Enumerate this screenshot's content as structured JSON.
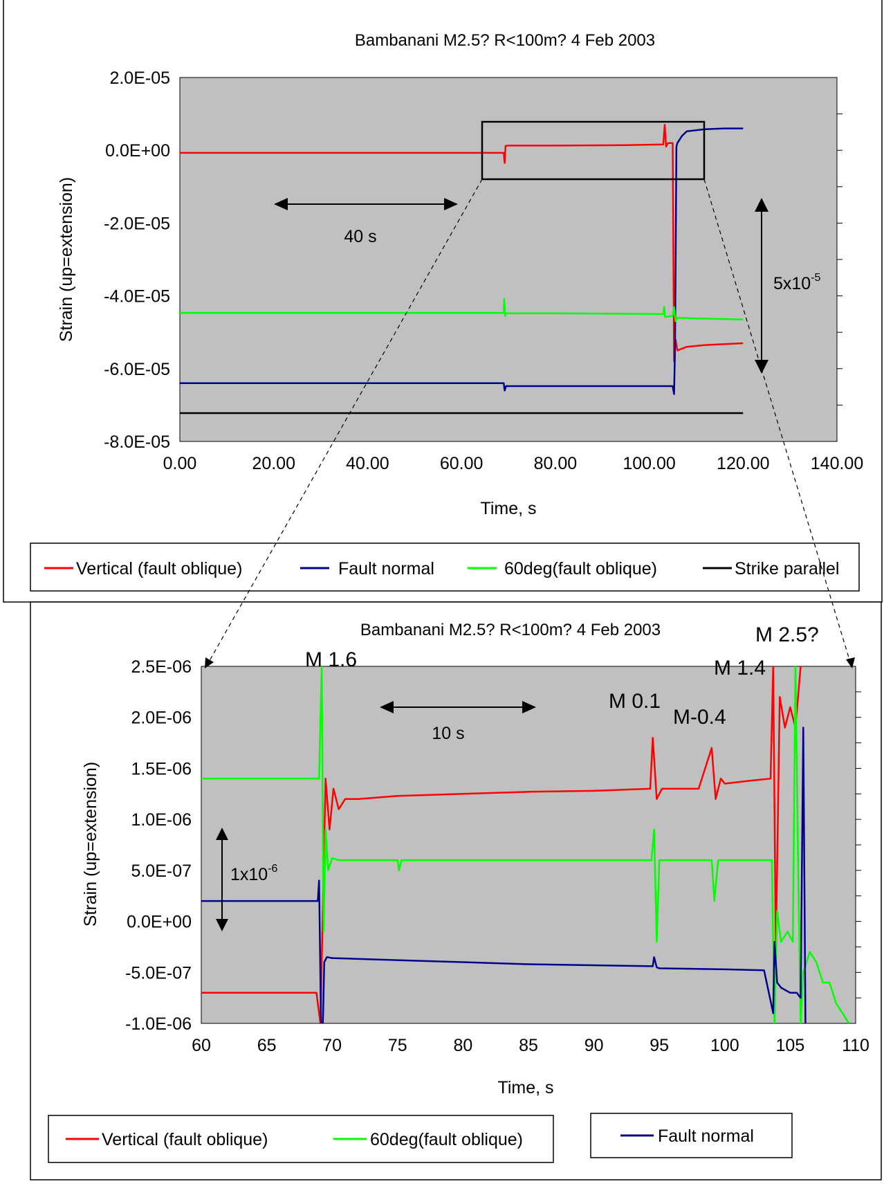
{
  "chart_data": [
    {
      "type": "line",
      "title": "Bambanani  M2.5?  R<100m?  4 Feb 2003",
      "xlabel": "Time, s",
      "ylabel": "Strain  (up=extension)",
      "xlim": [
        0,
        140
      ],
      "ylim": [
        -8e-05,
        2e-05
      ],
      "x_ticks": [
        "0.00",
        "20.00",
        "40.00",
        "60.00",
        "80.00",
        "100.00",
        "120.00",
        "140.00"
      ],
      "x_tick_values": [
        0,
        20,
        40,
        60,
        80,
        100,
        120,
        140
      ],
      "y_ticks": [
        "2.0E-05",
        "0.0E+00",
        "-2.0E-05",
        "-4.0E-05",
        "-6.0E-05",
        "-8.0E-05"
      ],
      "y_tick_values": [
        2e-05,
        0,
        -2e-05,
        -4e-05,
        -6e-05,
        -8e-05
      ],
      "grid": false,
      "legend_position": "bottom",
      "annotations": [
        "40 s",
        "5x10",
        "-5"
      ],
      "series": [
        {
          "name": "Vertical (fault   oblique)",
          "color": "#ff0000",
          "x": [
            0,
            69,
            69.2,
            69.4,
            70,
            80,
            95,
            103,
            103.3,
            103.6,
            104,
            105,
            105.3,
            105.6,
            106,
            108,
            112,
            120
          ],
          "y": [
            -7e-07,
            -7e-07,
            -3.5e-06,
            1.2e-06,
            1.3e-06,
            1.3e-06,
            1.4e-06,
            1.6e-06,
            7e-06,
            1e-06,
            2e-06,
            2e-06,
            -5.8e-05,
            -5.2e-05,
            -5.5e-05,
            -5.4e-05,
            -5.35e-05,
            -5.3e-05
          ]
        },
        {
          "name": "Fault normal",
          "color": "#00008b",
          "x": [
            0,
            69,
            69.2,
            69.5,
            80,
            105,
            105.3,
            105.5,
            105.8,
            106,
            107,
            108,
            112,
            116,
            120
          ],
          "y": [
            -6.4e-05,
            -6.4e-05,
            -6.6e-05,
            -6.48e-05,
            -6.48e-05,
            -6.48e-05,
            -6.7e-05,
            -5.4e-05,
            1e-06,
            2e-06,
            4e-06,
            5.2e-06,
            5.8e-06,
            6e-06,
            6e-06
          ]
        },
        {
          "name": "60deg(fault oblique)",
          "color": "#00ff00",
          "x": [
            0,
            69,
            69.1,
            69.3,
            69.5,
            80,
            103,
            103.2,
            103.4,
            105,
            105.3,
            105.6,
            106,
            110,
            120
          ],
          "y": [
            -4.47e-05,
            -4.47e-05,
            -4.08e-05,
            -4.55e-05,
            -4.48e-05,
            -4.48e-05,
            -4.5e-05,
            -4.3e-05,
            -4.58e-05,
            -4.55e-05,
            -4.3e-05,
            -4.7e-05,
            -4.6e-05,
            -4.62e-05,
            -4.65e-05
          ]
        },
        {
          "name": "Strike parallel",
          "color": "#000000",
          "x": [
            0,
            120
          ],
          "y": [
            -7.22e-05,
            -7.22e-05
          ]
        }
      ]
    },
    {
      "type": "line",
      "title": "Bambanani  M2.5?  R<100m?  4 Feb 2003",
      "xlabel": "Time, s",
      "ylabel": "Strain  (up=extension)",
      "xlim": [
        60,
        110
      ],
      "ylim": [
        -1e-06,
        2.5e-06
      ],
      "x_ticks": [
        "60",
        "65",
        "70",
        "75",
        "80",
        "85",
        "90",
        "95",
        "100",
        "105",
        "110"
      ],
      "x_tick_values": [
        60,
        65,
        70,
        75,
        80,
        85,
        90,
        95,
        100,
        105,
        110
      ],
      "y_ticks": [
        "2.5E-06",
        "2.0E-06",
        "1.5E-06",
        "1.0E-06",
        "5.0E-07",
        "0.0E+00",
        "-5.0E-07",
        "-1.0E-06"
      ],
      "y_tick_values": [
        2.5e-06,
        2e-06,
        1.5e-06,
        1e-06,
        5e-07,
        0,
        -5e-07,
        -1e-06
      ],
      "grid": false,
      "legend_position": "bottom",
      "annotations": [
        "M 1.6",
        "M 0.1",
        "M-0.4",
        "M 1.4",
        "M 2.5?",
        "10 s",
        "1x10",
        "-6"
      ],
      "series": [
        {
          "name": "Vertical (fault   oblique)",
          "color": "#ff0000",
          "x": [
            60,
            68.8,
            69.1,
            69.3,
            69.5,
            69.8,
            70.1,
            70.5,
            71,
            72,
            75,
            80,
            85,
            90,
            94.3,
            94.5,
            94.8,
            95.2,
            96,
            98,
            99,
            99.3,
            99.7,
            100,
            102,
            103.5,
            103.7,
            103.9,
            104.2,
            104.6,
            105,
            105.4,
            105.8
          ],
          "y": [
            -7e-07,
            -7e-07,
            -1e-06,
            2e-07,
            1.4e-06,
            9e-07,
            1.3e-06,
            1.1e-06,
            1.2e-06,
            1.2e-06,
            1.23e-06,
            1.25e-06,
            1.27e-06,
            1.28e-06,
            1.3e-06,
            1.8e-06,
            1.2e-06,
            1.3e-06,
            1.3e-06,
            1.3e-06,
            1.7e-06,
            1.2e-06,
            1.4e-06,
            1.35e-06,
            1.38e-06,
            1.4e-06,
            2.5e-06,
            -3e-07,
            2.2e-06,
            1.9e-06,
            2.1e-06,
            1.9e-06,
            2.5e-06
          ]
        },
        {
          "name": "60deg(fault oblique)",
          "color": "#00ff00",
          "x": [
            60,
            69,
            69.2,
            69.35,
            69.5,
            69.7,
            70,
            70.5,
            72,
            75,
            75.1,
            75.3,
            80,
            85,
            90,
            94.4,
            94.6,
            94.8,
            95,
            96,
            98,
            99,
            99.2,
            99.5,
            100,
            103,
            103.6,
            103.8,
            104,
            104.3,
            104.8,
            105.2,
            105.4,
            105.6,
            105.8,
            106,
            106.5,
            107,
            107.5,
            108,
            108.5,
            109,
            109.5
          ],
          "y": [
            1.4e-06,
            1.4e-06,
            2.5e-06,
            -1e-07,
            9e-07,
            5e-07,
            6.2e-07,
            6e-07,
            6e-07,
            6e-07,
            5e-07,
            6e-07,
            6e-07,
            6e-07,
            6e-07,
            6e-07,
            9e-07,
            -2e-07,
            6e-07,
            6e-07,
            6e-07,
            6e-07,
            2e-07,
            6e-07,
            6e-07,
            6e-07,
            6e-07,
            -1e-06,
            1e-07,
            -2e-07,
            -1e-07,
            -2e-07,
            2.5e-06,
            6e-07,
            -1e-06,
            -5e-07,
            -3e-07,
            -4e-07,
            -6e-07,
            -6e-07,
            -8e-07,
            -9e-07,
            -1e-06
          ]
        },
        {
          "name": "Fault normal",
          "color": "#00008b",
          "x": [
            60,
            68.9,
            69,
            69.2,
            69.4,
            69.6,
            70,
            75,
            80,
            85,
            90,
            94.5,
            94.6,
            94.8,
            95,
            100,
            103,
            103.7,
            103.8,
            104,
            104.3,
            105,
            105.5,
            105.8,
            106,
            106.2
          ],
          "y": [
            2e-07,
            2e-07,
            4e-07,
            -1.5e-06,
            -4e-07,
            -3.5e-07,
            -3.6e-07,
            -3.8e-07,
            -4e-07,
            -4.2e-07,
            -4.3e-07,
            -4.4e-07,
            -3.5e-07,
            -4.5e-07,
            -4.6e-07,
            -4.7e-07,
            -4.8e-07,
            -9e-07,
            -2e-07,
            -6e-07,
            -6.5e-07,
            -7e-07,
            -7e-07,
            -7.5e-07,
            1.9e-06,
            -1.6e-06
          ]
        }
      ]
    }
  ]
}
